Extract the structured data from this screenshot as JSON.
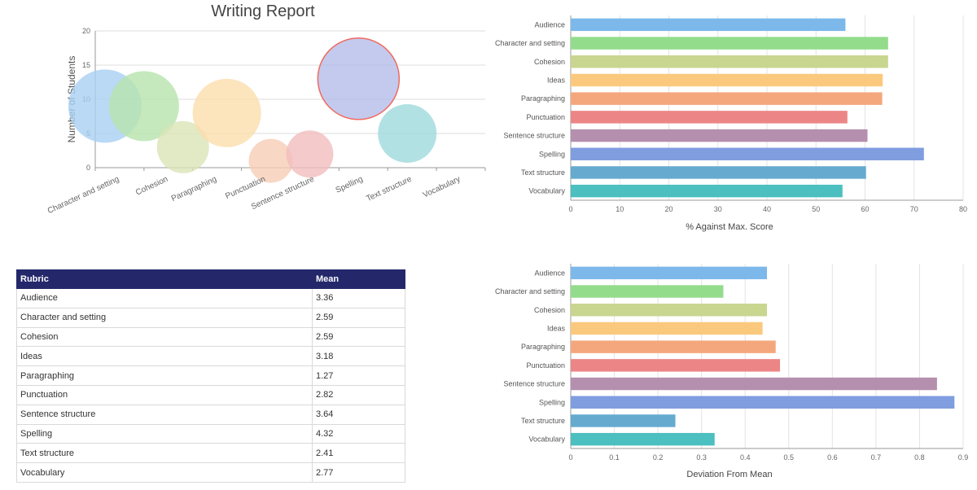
{
  "chart_data": [
    {
      "type": "scatter",
      "subtype": "bubble",
      "title": "Writing Report",
      "xlabel": "",
      "ylabel": "Number of Students",
      "ylim": [
        0,
        20
      ],
      "yticks": [
        0,
        5,
        10,
        15,
        20
      ],
      "grid": true,
      "categories": [
        "Character and setting",
        "Cohesion",
        "Paragraphing",
        "Punctuation",
        "Sentence structure",
        "Spelling",
        "Text structure",
        "Vocabulary"
      ],
      "series": [
        {
          "points": [
            {
              "x": 0.2,
              "y": 9,
              "size": 45,
              "color": "#a7cff3"
            },
            {
              "x": 1.0,
              "y": 9,
              "size": 43,
              "color": "#b6e3ad"
            },
            {
              "x": 1.8,
              "y": 3,
              "size": 32,
              "color": "#d9e5b6"
            },
            {
              "x": 2.7,
              "y": 8,
              "size": 42,
              "color": "#fbddad"
            },
            {
              "x": 3.6,
              "y": 1,
              "size": 27,
              "color": "#f7cdb6"
            },
            {
              "x": 4.4,
              "y": 2,
              "size": 29,
              "color": "#f3bdbd"
            },
            {
              "x": 5.4,
              "y": 13,
              "size": 50,
              "color": "#b5bde8",
              "stroke": "#f06a60"
            },
            {
              "x": 6.4,
              "y": 5,
              "size": 36,
              "color": "#9fd9dc"
            }
          ]
        }
      ]
    },
    {
      "type": "bar",
      "orientation": "horizontal",
      "title": "",
      "xlabel": "% Against Max. Score",
      "ylabel": "",
      "xlim": [
        0,
        80
      ],
      "xticks": [
        0,
        10,
        20,
        30,
        40,
        50,
        60,
        70,
        80
      ],
      "grid": true,
      "categories": [
        "Audience",
        "Character and setting",
        "Cohesion",
        "Ideas",
        "Paragraphing",
        "Punctuation",
        "Sentence structure",
        "Spelling",
        "Text structure",
        "Vocabulary"
      ],
      "values": [
        56,
        64.7,
        64.7,
        63.6,
        63.5,
        56.4,
        60.5,
        72,
        60.2,
        55.4
      ],
      "colors": [
        "#7cb9ea",
        "#93dc8c",
        "#c8d68f",
        "#fbc97e",
        "#f4a77c",
        "#ec8686",
        "#b58fae",
        "#7f9ddf",
        "#66aacf",
        "#4cbfc0"
      ]
    },
    {
      "type": "bar",
      "orientation": "horizontal",
      "title": "",
      "xlabel": "Deviation From Mean",
      "ylabel": "",
      "xlim": [
        0,
        0.9
      ],
      "xticks": [
        0,
        0.1,
        0.2,
        0.3,
        0.4,
        0.5,
        0.6,
        0.7,
        0.8,
        0.9
      ],
      "grid": true,
      "categories": [
        "Audience",
        "Character and setting",
        "Cohesion",
        "Ideas",
        "Paragraphing",
        "Punctuation",
        "Sentence structure",
        "Spelling",
        "Text structure",
        "Vocabulary"
      ],
      "values": [
        0.45,
        0.35,
        0.45,
        0.44,
        0.47,
        0.48,
        0.84,
        0.88,
        0.24,
        0.33
      ],
      "colors": [
        "#7cb9ea",
        "#93dc8c",
        "#c8d68f",
        "#fbc97e",
        "#f4a77c",
        "#ec8686",
        "#b58fae",
        "#7f9ddf",
        "#66aacf",
        "#4cbfc0"
      ]
    }
  ],
  "table": {
    "headers": [
      "Rubric",
      "Mean"
    ],
    "rows": [
      [
        "Audience",
        "3.36"
      ],
      [
        "Character and setting",
        "2.59"
      ],
      [
        "Cohesion",
        "2.59"
      ],
      [
        "Ideas",
        "3.18"
      ],
      [
        "Paragraphing",
        "1.27"
      ],
      [
        "Punctuation",
        "2.82"
      ],
      [
        "Sentence structure",
        "3.64"
      ],
      [
        "Spelling",
        "4.32"
      ],
      [
        "Text structure",
        "2.41"
      ],
      [
        "Vocabulary",
        "2.77"
      ]
    ]
  }
}
